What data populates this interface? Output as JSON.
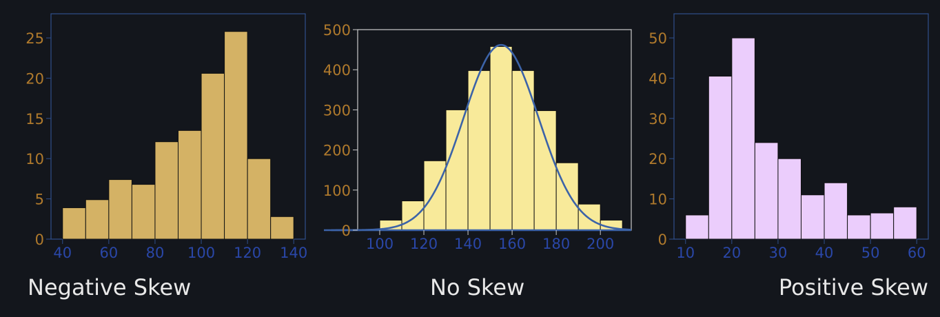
{
  "chart_data": [
    {
      "type": "bar",
      "title": "Negative Skew",
      "xlabel": "",
      "ylabel": "",
      "bin_edges": [
        40,
        50,
        60,
        70,
        80,
        90,
        100,
        110,
        120,
        130,
        140
      ],
      "values": [
        3.9,
        4.9,
        7.4,
        6.8,
        12.1,
        13.5,
        20.6,
        25.8,
        10.0,
        2.8
      ],
      "xlim": [
        35,
        145
      ],
      "ylim": [
        0,
        28
      ],
      "xticks": [
        40,
        60,
        80,
        100,
        120,
        140
      ],
      "yticks": [
        0,
        5,
        10,
        15,
        20,
        25
      ],
      "grid": false,
      "colors": {
        "bar": "#d4b265",
        "axis_frame": "#2f4f8c",
        "ytick": "#b07a2c",
        "xtick": "#2a47a8",
        "bar_edge": "#111111"
      }
    },
    {
      "type": "bar",
      "title": "No Skew",
      "xlabel": "",
      "ylabel": "",
      "bin_edges": [
        100,
        110,
        120,
        130,
        140,
        150,
        160,
        170,
        180,
        190,
        200,
        210
      ],
      "values": [
        25,
        73,
        173,
        300,
        398,
        458,
        398,
        298,
        168,
        65,
        25
      ],
      "overlay": {
        "type": "normal-curve",
        "mean": 155,
        "sd": 17,
        "peak": 462
      },
      "xlim": [
        90,
        214
      ],
      "ylim": [
        0,
        500
      ],
      "xticks": [
        100,
        120,
        140,
        160,
        180,
        200
      ],
      "yticks": [
        0,
        100,
        200,
        300,
        400,
        500
      ],
      "grid": false,
      "colors": {
        "bar": "#f8ea9a",
        "curve": "#3c63a8",
        "axis_frame": "#cccccc",
        "ytick": "#b07a2c",
        "xtick": "#2a47a8",
        "bar_edge": "#111111"
      }
    },
    {
      "type": "bar",
      "title": "Positive Skew",
      "xlabel": "",
      "ylabel": "",
      "bin_edges": [
        10,
        15,
        20,
        25,
        30,
        35,
        40,
        45,
        50,
        55,
        60
      ],
      "values": [
        6,
        40.5,
        50,
        24,
        20,
        11,
        14,
        6,
        6.5,
        8
      ],
      "xlim": [
        7.5,
        62.5
      ],
      "ylim": [
        0,
        56
      ],
      "xticks": [
        10,
        20,
        30,
        40,
        50,
        60
      ],
      "yticks": [
        0,
        10,
        20,
        30,
        40,
        50
      ],
      "grid": false,
      "colors": {
        "bar": "#ebcdfc",
        "axis_frame": "#2f4f8c",
        "ytick": "#b07a2c",
        "xtick": "#2a47a8",
        "bar_edge": "#111111"
      }
    }
  ]
}
